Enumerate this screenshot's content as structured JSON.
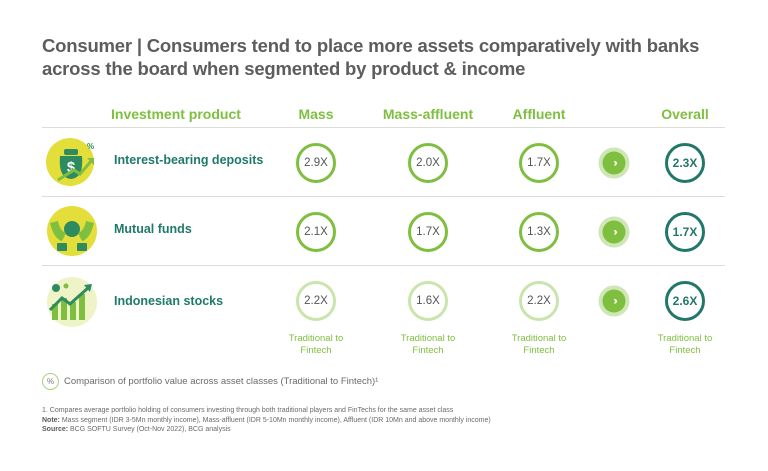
{
  "title": "Consumer | Consumers tend to place more assets comparatively with banks across the board when segmented by product & income",
  "chart_data": {
    "type": "table",
    "columns": [
      "Investment product",
      "Mass",
      "Mass-affluent",
      "Affluent",
      "Overall"
    ],
    "rows": [
      {
        "product": "Interest-bearing deposits",
        "icon": "money-bag-growth-icon",
        "values": [
          "2.9X",
          "2.0X",
          "1.7X",
          "2.3X"
        ]
      },
      {
        "product": "Mutual funds",
        "icon": "hands-holding-coin-icon",
        "values": [
          "2.1X",
          "1.7X",
          "1.3X",
          "1.7X"
        ]
      },
      {
        "product": "Indonesian stocks",
        "icon": "stock-chart-icon",
        "values": [
          "2.2X",
          "1.6X",
          "2.2X",
          "2.6X"
        ]
      }
    ],
    "column_footer": "Traditional to Fintech"
  },
  "legend": {
    "symbol": "%",
    "text": "Comparison of portfolio value across asset classes (Traditional to Fintech)¹"
  },
  "notes": {
    "footnote": "1. Compares average portfolio holding of consumers investing through both traditional players and FinTechs for the same asset class",
    "note_label": "Note:",
    "note_text": "Mass segment (IDR 3-5Mn monthly income), Mass-affluent (IDR 5-10Mn monthly income), Affluent (IDR 10Mn and above monthly income)",
    "source_label": "Source:",
    "source_text": "BCG SOFTU Survey (Oct-Nov 2022), BCG analysis"
  },
  "colors": {
    "green": "#7fbf3f",
    "light_green": "#c9e4ad",
    "teal": "#22776b",
    "label_teal": "#1f7a6a"
  }
}
